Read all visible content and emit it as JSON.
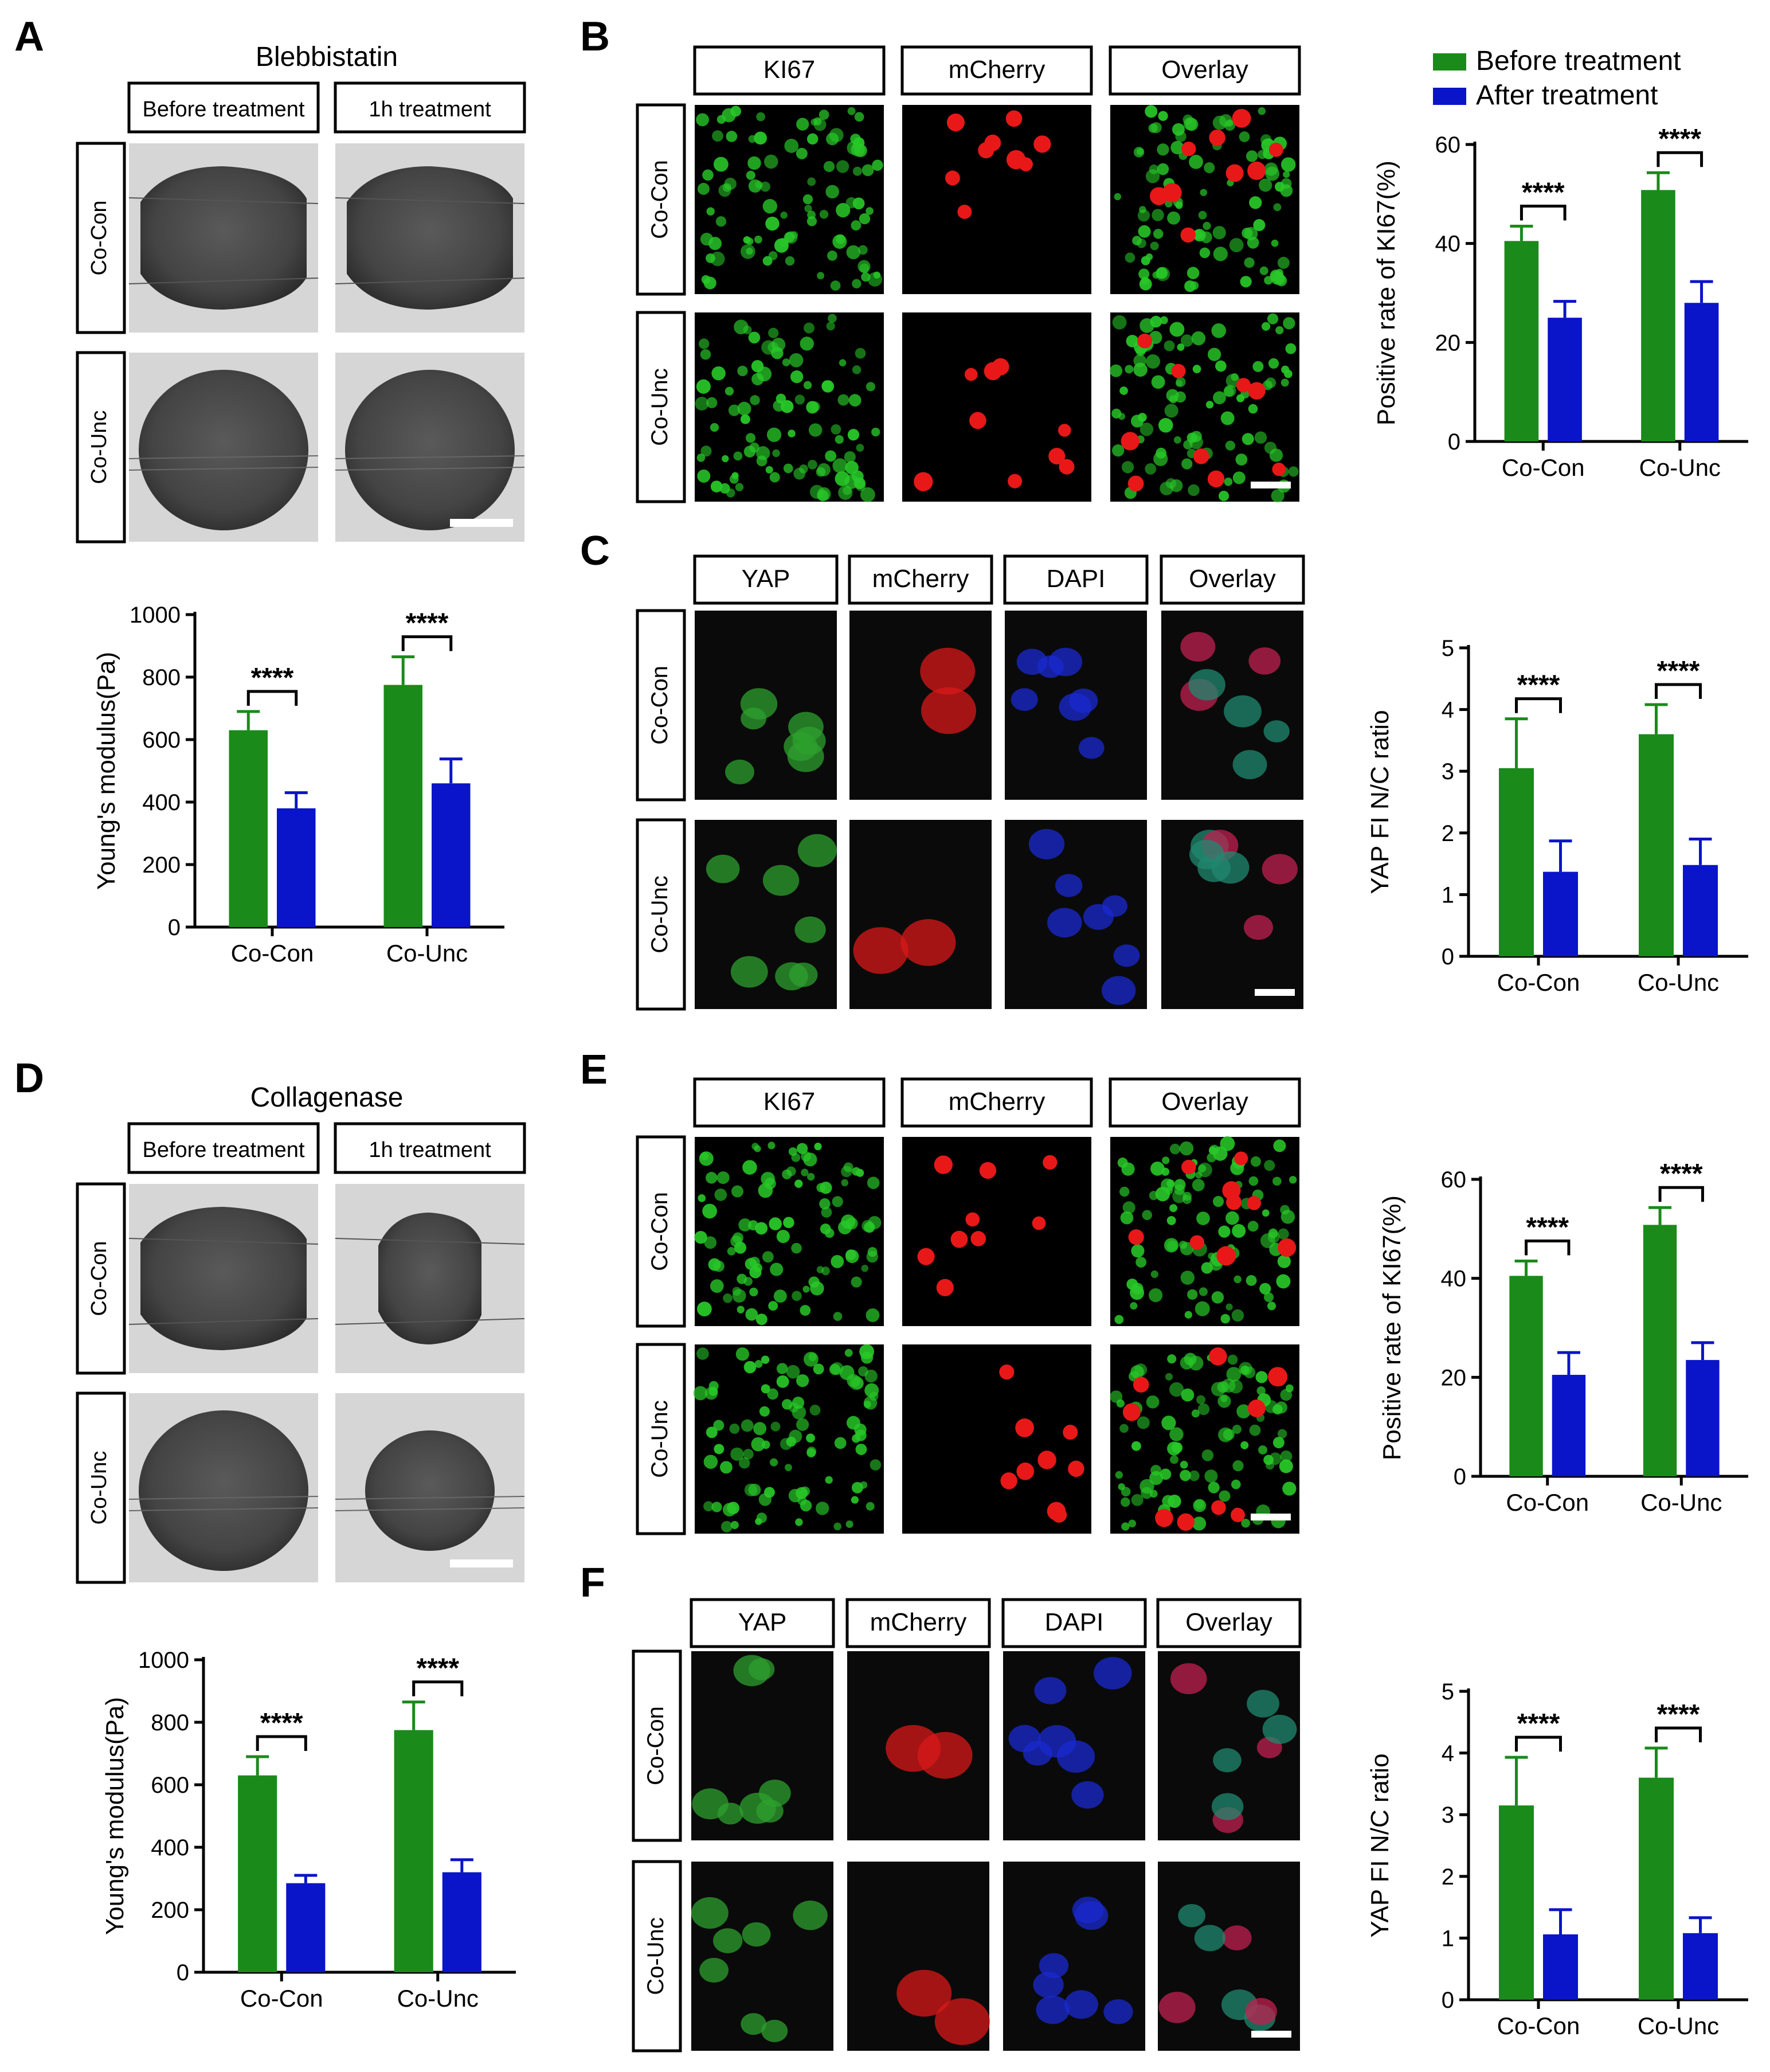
{
  "panel_letters": {
    "A": "A",
    "B": "B",
    "C": "C",
    "D": "D",
    "E": "E",
    "F": "F"
  },
  "panelA": {
    "title": "Blebbistatin",
    "col_headers": [
      "Before treatment",
      "1h treatment"
    ],
    "row_labels": [
      "Co-Con",
      "Co-Unc"
    ]
  },
  "panelD": {
    "title": "Collagenase",
    "col_headers": [
      "Before treatment",
      "1h treatment"
    ],
    "row_labels": [
      "Co-Con",
      "Co-Unc"
    ]
  },
  "panelB": {
    "col_headers": [
      "KI67",
      "mCherry",
      "Overlay"
    ],
    "row_labels": [
      "Co-Con",
      "Co-Unc"
    ]
  },
  "panelE": {
    "col_headers": [
      "KI67",
      "mCherry",
      "Overlay"
    ],
    "row_labels": [
      "Co-Con",
      "Co-Unc"
    ]
  },
  "panelC": {
    "col_headers": [
      "YAP",
      "mCherry",
      "DAPI",
      "Overlay"
    ],
    "row_labels": [
      "Co-Con",
      "Co-Unc"
    ]
  },
  "panelF": {
    "col_headers": [
      "YAP",
      "mCherry",
      "DAPI",
      "Overlay"
    ],
    "row_labels": [
      "Co-Con",
      "Co-Unc"
    ]
  },
  "legend": {
    "items": [
      {
        "label": "Before treatment",
        "color": "#1a8a1a"
      },
      {
        "label": "After treatment",
        "color": "#0a14c8"
      }
    ]
  },
  "colors": {
    "before": "#1a8a1a",
    "after": "#0a14c8"
  },
  "chart_data": [
    {
      "id": "A",
      "type": "bar",
      "categories": [
        "Co-Con",
        "Co-Unc"
      ],
      "series": [
        {
          "name": "Before treatment",
          "values": [
            630,
            775
          ],
          "errors": [
            60,
            90
          ]
        },
        {
          "name": "After treatment",
          "values": [
            380,
            460
          ],
          "errors": [
            50,
            78
          ]
        }
      ],
      "ylabel": "Young's modulus(Pa)",
      "ylim": [
        0,
        1000
      ],
      "yticks": [
        0,
        200,
        400,
        600,
        800,
        1000
      ],
      "significance": [
        "****",
        "****"
      ]
    },
    {
      "id": "B",
      "type": "bar",
      "categories": [
        "Co-Con",
        "Co-Unc"
      ],
      "series": [
        {
          "name": "Before treatment",
          "values": [
            40.5,
            50.8
          ],
          "errors": [
            3,
            3.5
          ]
        },
        {
          "name": "After treatment",
          "values": [
            25,
            28
          ],
          "errors": [
            3.3,
            4.3
          ]
        }
      ],
      "ylabel": "Positive rate of KI67(%)",
      "ylim": [
        0,
        60
      ],
      "yticks": [
        0,
        20,
        40,
        60
      ],
      "significance": [
        "****",
        "****"
      ]
    },
    {
      "id": "C",
      "type": "bar",
      "categories": [
        "Co-Con",
        "Co-Unc"
      ],
      "series": [
        {
          "name": "Before treatment",
          "values": [
            3.05,
            3.6
          ],
          "errors": [
            0.8,
            0.48
          ]
        },
        {
          "name": "After treatment",
          "values": [
            1.37,
            1.48
          ],
          "errors": [
            0.5,
            0.42
          ]
        }
      ],
      "ylabel": "YAP FI N/C ratio",
      "ylim": [
        0,
        5
      ],
      "yticks": [
        0,
        1,
        2,
        3,
        4,
        5
      ],
      "significance": [
        "****",
        "****"
      ]
    },
    {
      "id": "D",
      "type": "bar",
      "categories": [
        "Co-Con",
        "Co-Unc"
      ],
      "series": [
        {
          "name": "Before treatment",
          "values": [
            630,
            775
          ],
          "errors": [
            60,
            90
          ]
        },
        {
          "name": "After treatment",
          "values": [
            285,
            320
          ],
          "errors": [
            25,
            40
          ]
        }
      ],
      "ylabel": "Young's modulus(Pa)",
      "ylim": [
        0,
        1000
      ],
      "yticks": [
        0,
        200,
        400,
        600,
        800,
        1000
      ],
      "significance": [
        "****",
        "****"
      ]
    },
    {
      "id": "E",
      "type": "bar",
      "categories": [
        "Co-Con",
        "Co-Unc"
      ],
      "series": [
        {
          "name": "Before treatment",
          "values": [
            40.5,
            50.8
          ],
          "errors": [
            3,
            3.5
          ]
        },
        {
          "name": "After treatment",
          "values": [
            20.5,
            23.5
          ],
          "errors": [
            4.5,
            3.5
          ]
        }
      ],
      "ylabel": "Positive rate of KI67(%)",
      "ylim": [
        0,
        60
      ],
      "yticks": [
        0,
        20,
        40,
        60
      ],
      "significance": [
        "****",
        "****"
      ]
    },
    {
      "id": "F",
      "type": "bar",
      "categories": [
        "Co-Con",
        "Co-Unc"
      ],
      "series": [
        {
          "name": "Before treatment",
          "values": [
            3.15,
            3.6
          ],
          "errors": [
            0.78,
            0.48
          ]
        },
        {
          "name": "After treatment",
          "values": [
            1.06,
            1.08
          ],
          "errors": [
            0.4,
            0.25
          ]
        }
      ],
      "ylabel": "YAP FI N/C ratio",
      "ylim": [
        0,
        5
      ],
      "yticks": [
        0,
        1,
        2,
        3,
        4,
        5
      ],
      "significance": [
        "****",
        "****"
      ]
    }
  ]
}
